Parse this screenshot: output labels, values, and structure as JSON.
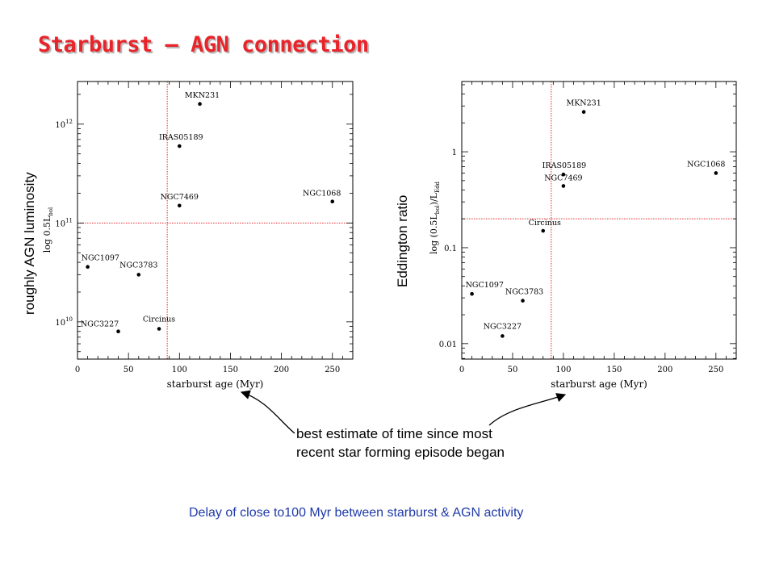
{
  "title": "Starburst – AGN connection",
  "annotation": {
    "lines": [
      "best estimate of time since most",
      "recent star forming episode began"
    ]
  },
  "footer": "Delay of close to100 Myr between starburst & AGN activity",
  "colors": {
    "title": "#e8242a",
    "reference_line": "#e8242a",
    "footer": "#1f3aa8"
  },
  "chart_data": [
    {
      "type": "scatter",
      "outer_ylabel": "roughly AGN luminosity",
      "xlabel": "starburst age (Myr)",
      "ylabel": "log 0.5L",
      "ylabel_subscript": "bol",
      "xlim": [
        0,
        270
      ],
      "ylim": [
        4200000000.0,
        2700000000000.0
      ],
      "yscale": "log",
      "xticks": [
        "0",
        "50",
        "100",
        "150",
        "200",
        "250"
      ],
      "xtick_values": [
        0,
        50,
        100,
        150,
        200,
        250
      ],
      "yticks": [
        {
          "value": 10000000000.0,
          "base": "10",
          "exp": "10"
        },
        {
          "value": 100000000000.0,
          "base": "10",
          "exp": "11"
        },
        {
          "value": 1000000000000.0,
          "base": "10",
          "exp": "12"
        }
      ],
      "reference_lines": {
        "x": 88,
        "y": 100000000000.0
      },
      "points": [
        {
          "name": "MKN231",
          "x": 120,
          "y": 1600000000000.0
        },
        {
          "name": "IRAS05189",
          "x": 100,
          "y": 600000000000.0
        },
        {
          "name": "NGC7469",
          "x": 100,
          "y": 150000000000.0
        },
        {
          "name": "NGC1068",
          "x": 250,
          "y": 165000000000.0
        },
        {
          "name": "NGC1097",
          "x": 10,
          "y": 36000000000.0
        },
        {
          "name": "NGC3783",
          "x": 60,
          "y": 30000000000.0
        },
        {
          "name": "NGC3227",
          "x": 40,
          "y": 8000000000.0
        },
        {
          "name": "Circinus",
          "x": 80,
          "y": 8500000000.0
        }
      ]
    },
    {
      "type": "scatter",
      "outer_ylabel": "Eddington ratio",
      "xlabel": "starburst age (Myr)",
      "ylabel": "log (0.5L",
      "ylabel_sub1": "bol",
      "ylabel_mid": ")/L",
      "ylabel_sub2": "Edd",
      "xlim": [
        0,
        270
      ],
      "ylim": [
        0.0069,
        5.4
      ],
      "yscale": "log",
      "xticks": [
        "0",
        "50",
        "100",
        "150",
        "200",
        "250"
      ],
      "xtick_values": [
        0,
        50,
        100,
        150,
        200,
        250
      ],
      "yticks": [
        {
          "value": 0.01,
          "label": "0.01"
        },
        {
          "value": 0.1,
          "label": "0.1"
        },
        {
          "value": 1,
          "label": "1"
        }
      ],
      "reference_lines": {
        "x": 88,
        "y": 0.2
      },
      "points": [
        {
          "name": "MKN231",
          "x": 120,
          "y": 2.6
        },
        {
          "name": "IRAS05189",
          "x": 100,
          "y": 0.58
        },
        {
          "name": "NGC7469",
          "x": 100,
          "y": 0.44
        },
        {
          "name": "NGC1068",
          "x": 250,
          "y": 0.6
        },
        {
          "name": "Circinus",
          "x": 80,
          "y": 0.15
        },
        {
          "name": "NGC1097",
          "x": 10,
          "y": 0.033
        },
        {
          "name": "NGC3783",
          "x": 60,
          "y": 0.028
        },
        {
          "name": "NGC3227",
          "x": 40,
          "y": 0.012
        }
      ]
    }
  ]
}
